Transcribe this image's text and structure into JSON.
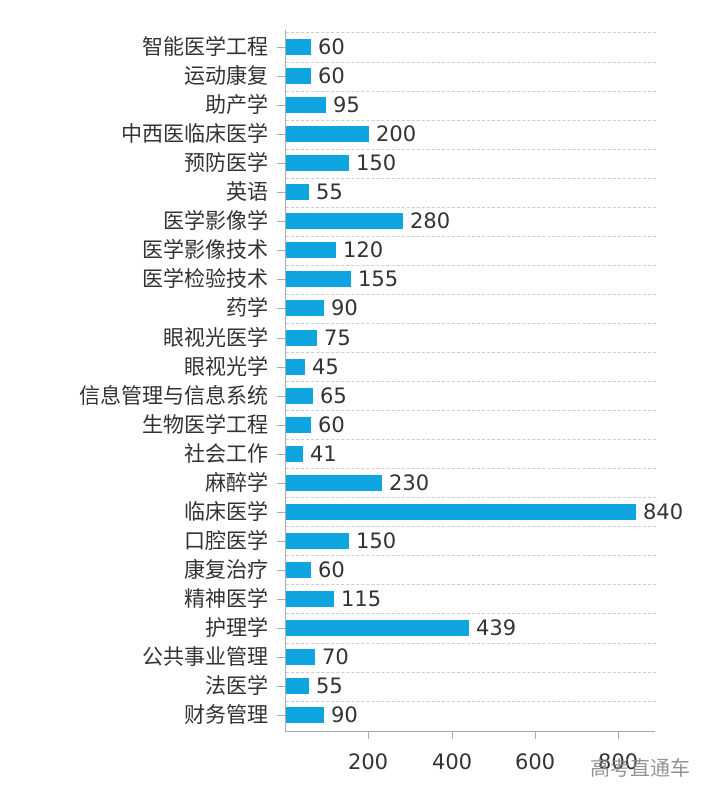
{
  "chart_data": {
    "type": "bar",
    "orientation": "horizontal",
    "title": "",
    "xlabel": "",
    "ylabel": "",
    "categories": [
      "智能医学工程",
      "运动康复",
      "助产学",
      "中西医临床医学",
      "预防医学",
      "英语",
      "医学影像学",
      "医学影像技术",
      "医学检验技术",
      "药学",
      "眼视光医学",
      "眼视光学",
      "信息管理与信息系统",
      "生物医学工程",
      "社会工作",
      "麻醉学",
      "临床医学",
      "口腔医学",
      "康复治疗",
      "精神医学",
      "护理学",
      "公共事业管理",
      "法医学",
      "财务管理"
    ],
    "values": [
      60,
      60,
      95,
      200,
      150,
      55,
      280,
      120,
      155,
      90,
      75,
      45,
      65,
      60,
      41,
      230,
      840,
      150,
      60,
      115,
      439,
      70,
      55,
      90
    ],
    "xlim": [
      0,
      880
    ],
    "xticks": [
      "200",
      "400",
      "600",
      "800"
    ],
    "xtick_values": [
      200,
      400,
      600,
      800
    ],
    "grid": "horizontal dashed",
    "data_labels": true,
    "bar_color": "#0ea5e0"
  },
  "watermark": "高考直通车"
}
